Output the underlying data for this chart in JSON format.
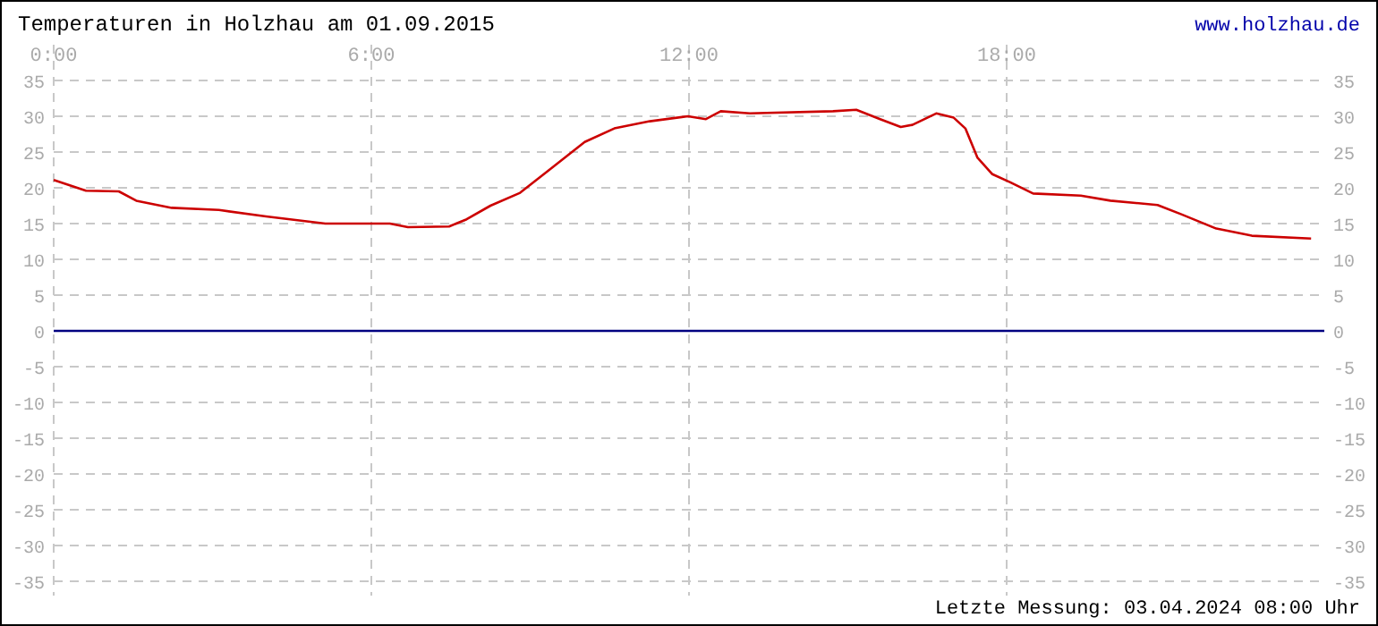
{
  "chart_data": {
    "type": "line",
    "title": "Temperaturen in Holzhau am 01.09.2015",
    "annotations": [
      "www.holzhau.de",
      "Letzte Messung: 03.04.2024 08:00 Uhr"
    ],
    "xlim": [
      0,
      24
    ],
    "xticks": [
      {
        "value": 0,
        "label": "0:00"
      },
      {
        "value": 6,
        "label": "6:00"
      },
      {
        "value": 12,
        "label": "12:00"
      },
      {
        "value": 18,
        "label": "18:00"
      }
    ],
    "ylim": [
      -35,
      35
    ],
    "yticks": [
      -35,
      -30,
      -25,
      -20,
      -15,
      -10,
      -5,
      0,
      5,
      10,
      15,
      20,
      25,
      30,
      35
    ],
    "y2lim": [
      -35,
      35
    ],
    "y2ticks": [
      -35,
      -30,
      -25,
      -20,
      -15,
      -10,
      -5,
      0,
      5,
      10,
      15,
      20,
      25,
      30,
      35
    ],
    "grid": true,
    "ref_lines": [
      {
        "axis": "y",
        "value": 0,
        "color": "#000080"
      }
    ],
    "series": [
      {
        "color": "#cc0000",
        "x": [
          0,
          0.61,
          1.23,
          1.56,
          2.23,
          3.12,
          4.01,
          5.13,
          6.35,
          6.69,
          7.47,
          7.8,
          8.25,
          8.81,
          9.36,
          10.03,
          10.59,
          11.26,
          11.98,
          12.32,
          12.6,
          13.15,
          14.72,
          15.16,
          15.61,
          16.0,
          16.22,
          16.67,
          17.0,
          17.22,
          17.45,
          17.73,
          18.06,
          18.5,
          19.4,
          19.96,
          20.85,
          21.3,
          21.96,
          22.63,
          23.75
        ],
        "values": [
          21.1,
          19.6,
          19.5,
          18.2,
          17.2,
          16.9,
          16.0,
          15.0,
          15.0,
          14.5,
          14.6,
          15.6,
          17.5,
          19.3,
          22.5,
          26.4,
          28.3,
          29.3,
          30.0,
          29.6,
          30.7,
          30.4,
          30.7,
          30.9,
          29.6,
          28.5,
          28.8,
          30.4,
          29.8,
          28.3,
          24.2,
          21.9,
          20.8,
          19.2,
          18.9,
          18.2,
          17.6,
          16.3,
          14.3,
          13.3,
          12.9
        ]
      }
    ]
  }
}
